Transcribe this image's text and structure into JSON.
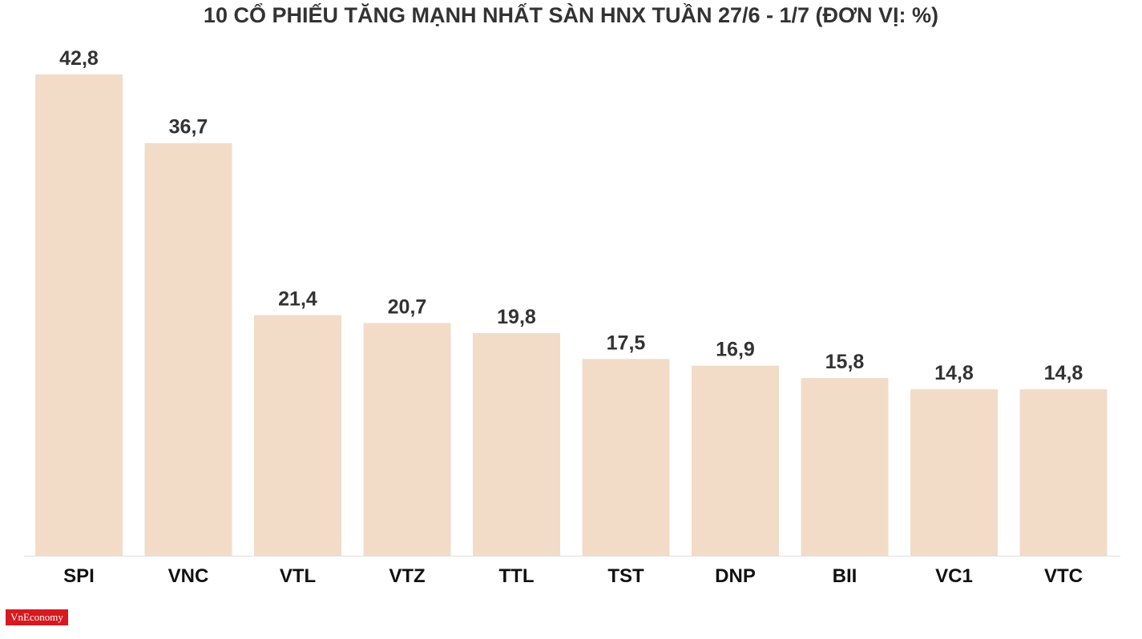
{
  "title": "10 CỔ PHIẾU TĂNG MẠNH NHẤT SÀN HNX TUẦN 27/6 - 1/7 (ĐƠN VỊ: %)",
  "brand": {
    "logo_text": "VnEconomy",
    "logo_color": "#d71920"
  },
  "colors": {
    "bar": "#f2dcc8",
    "text": "#333333",
    "axis": "#e0e0e0"
  },
  "chart_data": {
    "type": "bar",
    "title": "10 CỔ PHIẾU TĂNG MẠNH NHẤT SÀN HNX TUẦN 27/6 - 1/7 (ĐƠN VỊ: %)",
    "categories": [
      "SPI",
      "VNC",
      "VTL",
      "VTZ",
      "TTL",
      "TST",
      "DNP",
      "BII",
      "VC1",
      "VTC"
    ],
    "values": [
      42.8,
      36.7,
      21.4,
      20.7,
      19.8,
      17.5,
      16.9,
      15.8,
      14.8,
      14.8
    ],
    "value_labels": [
      "42,8",
      "36,7",
      "21,4",
      "20,7",
      "19,8",
      "17,5",
      "16,9",
      "15,8",
      "14,8",
      "14,8"
    ],
    "xlabel": "",
    "ylabel": "",
    "ylim": [
      0,
      42.8
    ],
    "grid": false,
    "legend": "none"
  }
}
